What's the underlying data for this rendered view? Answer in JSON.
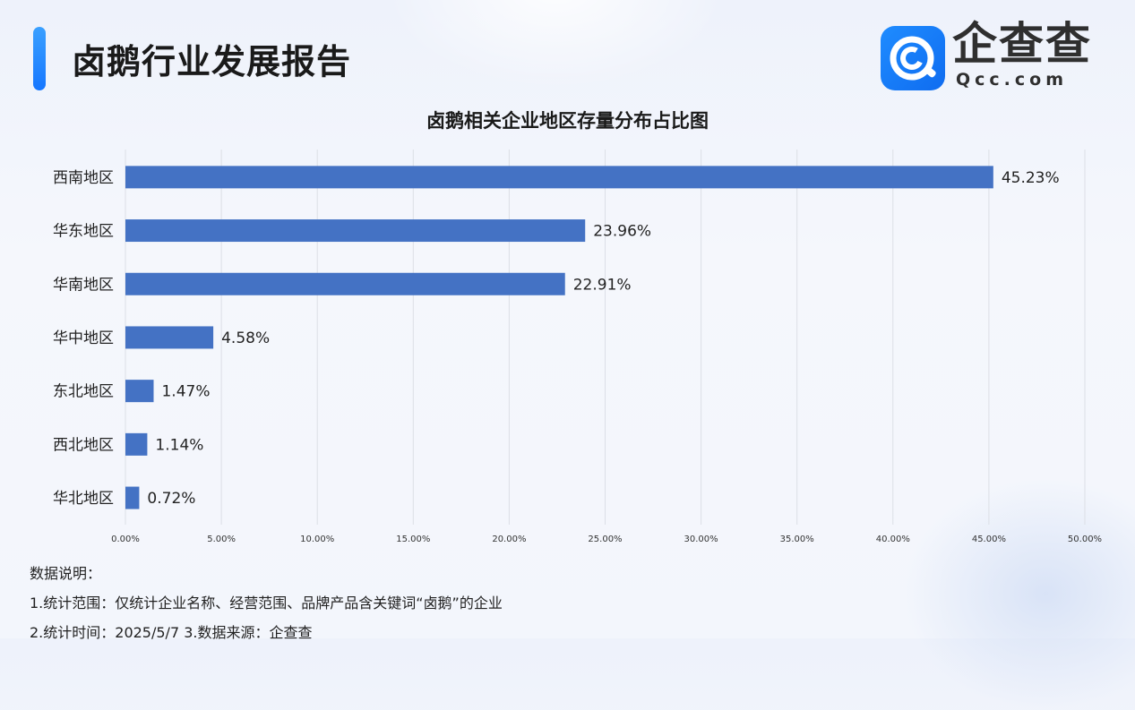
{
  "header": {
    "title": "卤鹅行业发展报告",
    "brand_name": "企查查",
    "brand_url": "Qcc.com"
  },
  "colors": {
    "bar": "#4472c4",
    "brand_blue": "#1677ff",
    "grid": "#dcdfe6"
  },
  "chart_data": {
    "type": "bar",
    "orientation": "horizontal",
    "title": "卤鹅相关企业地区存量分布占比图",
    "categories": [
      "西南地区",
      "华东地区",
      "华南地区",
      "华中地区",
      "东北地区",
      "西北地区",
      "华北地区"
    ],
    "values": [
      45.23,
      23.96,
      22.91,
      4.58,
      1.47,
      1.14,
      0.72
    ],
    "value_labels": [
      "45.23%",
      "23.96%",
      "22.91%",
      "4.58%",
      "1.47%",
      "1.14%",
      "0.72%"
    ],
    "xlim": [
      0,
      50
    ],
    "x_ticks": [
      "0.00%",
      "5.00%",
      "10.00%",
      "15.00%",
      "20.00%",
      "25.00%",
      "30.00%",
      "35.00%",
      "40.00%",
      "45.00%",
      "50.00%"
    ],
    "grid": "vertical"
  },
  "notes": {
    "heading": "数据说明：",
    "line1": "1.统计范围：仅统计企业名称、经营范围、品牌产品含关键词“卤鹅”的企业",
    "line2": " 2.统计时间：2025/5/7   3.数据来源：企查查"
  }
}
